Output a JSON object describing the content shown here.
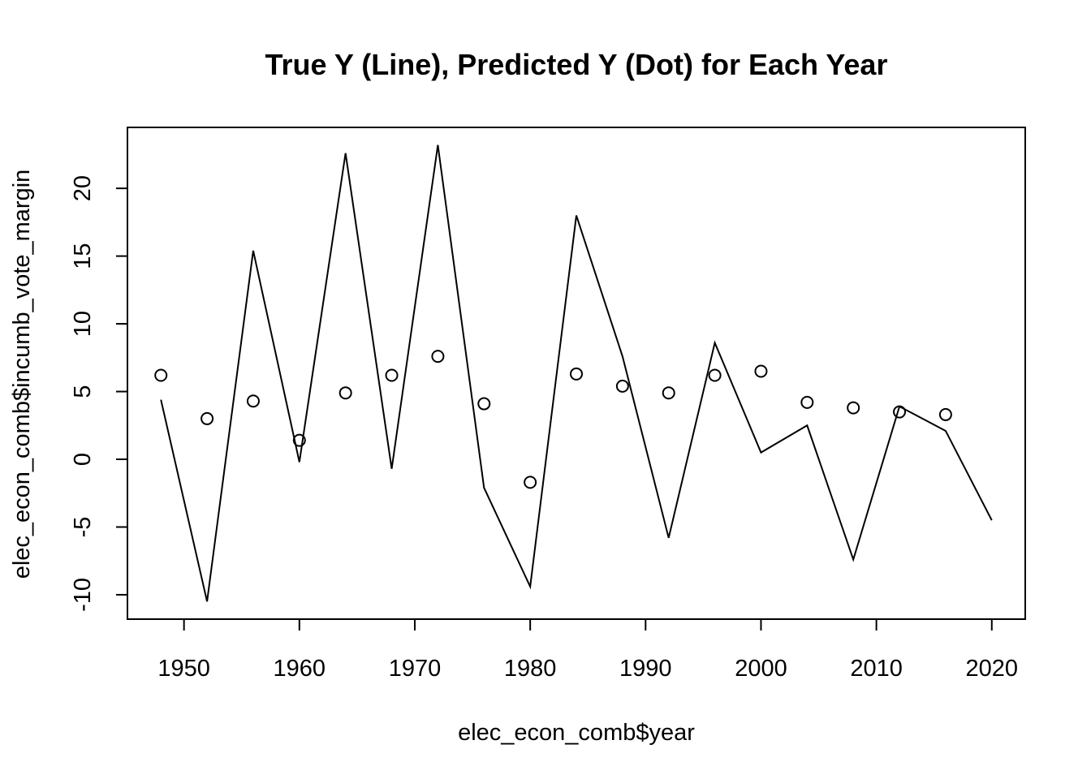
{
  "chart_data": {
    "type": "line",
    "title": "True Y (Line), Predicted Y (Dot) for Each Year",
    "xlabel": "elec_econ_comb$year",
    "ylabel": "elec_econ_comb$incumb_vote_margin",
    "xlim": [
      1945.1,
      2022.9
    ],
    "ylim": [
      -11.8,
      24.5
    ],
    "x_ticks": [
      "1950",
      "1960",
      "1970",
      "1980",
      "1990",
      "2000",
      "2010",
      "2020"
    ],
    "y_ticks": [
      "-10",
      "-5",
      "0",
      "5",
      "10",
      "15",
      "20"
    ],
    "grid": false,
    "series": [
      {
        "style": "line",
        "x": [
          1948,
          1952,
          1956,
          1960,
          1964,
          1968,
          1972,
          1976,
          1980,
          1984,
          1988,
          1992,
          1996,
          2000,
          2004,
          2008,
          2012,
          2016,
          2020
        ],
        "values": [
          4.4,
          -10.5,
          15.4,
          -0.2,
          22.6,
          -0.7,
          23.2,
          -2.1,
          -9.4,
          18.0,
          7.6,
          -5.8,
          8.6,
          0.5,
          2.5,
          -7.4,
          3.9,
          2.1,
          -4.5
        ]
      },
      {
        "style": "points",
        "x": [
          1948,
          1952,
          1956,
          1960,
          1964,
          1968,
          1972,
          1976,
          1980,
          1984,
          1988,
          1992,
          1996,
          2000,
          2004,
          2008,
          2012,
          2016
        ],
        "values": [
          6.2,
          3.0,
          4.3,
          1.4,
          4.9,
          6.2,
          7.6,
          4.1,
          -1.7,
          6.3,
          5.4,
          4.9,
          6.2,
          6.5,
          4.2,
          3.8,
          3.5,
          3.3
        ]
      }
    ]
  }
}
